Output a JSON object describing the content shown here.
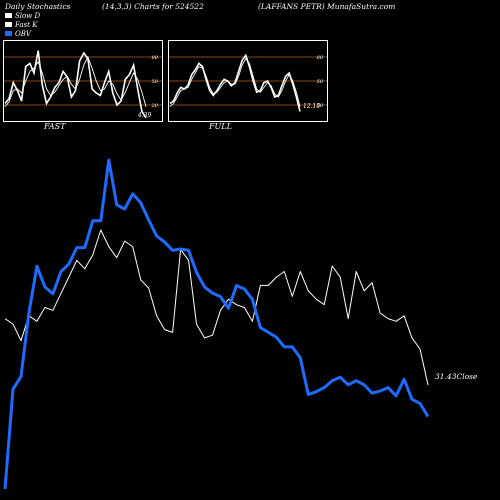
{
  "header": {
    "left": "Daily Stochastics",
    "mid": "(14,3,3) Charts for 524522",
    "right": "(LAFFANS PETR) MunafaSutra.com"
  },
  "legend": [
    {
      "label": "Slow D",
      "color": "#ffffff"
    },
    {
      "label": "Fast K",
      "color": "#ffffff"
    },
    {
      "label": "OBV",
      "color": "#1e6bff"
    }
  ],
  "colors": {
    "obv": "#1e6bff",
    "price": "#ffffff",
    "level": "#8b4513",
    "background": "#000000"
  },
  "chart_data": [
    {
      "type": "line",
      "title": "FAST",
      "ylim": [
        0,
        100
      ],
      "levels": [
        80,
        50,
        20
      ],
      "last_value_label": "4.39",
      "series": [
        {
          "name": "Fast K",
          "values": [
            22,
            28,
            48,
            38,
            25,
            68,
            72,
            60,
            88,
            45,
            22,
            30,
            42,
            48,
            62,
            55,
            30,
            38,
            75,
            85,
            78,
            40,
            35,
            32,
            48,
            62,
            35,
            20,
            25,
            52,
            58,
            70,
            40,
            12,
            4
          ]
        },
        {
          "name": "Slow D",
          "values": [
            18,
            24,
            38,
            40,
            35,
            50,
            62,
            66,
            74,
            60,
            40,
            32,
            36,
            44,
            52,
            56,
            46,
            40,
            52,
            70,
            80,
            66,
            50,
            38,
            40,
            50,
            46,
            34,
            26,
            36,
            48,
            60,
            52,
            36,
            18
          ]
        }
      ]
    },
    {
      "type": "line",
      "title": "FULL",
      "ylim": [
        0,
        100
      ],
      "levels": [
        80,
        50,
        20
      ],
      "last_value_label": "12.15",
      "series": [
        {
          "name": "Fast K",
          "values": [
            22,
            25,
            35,
            42,
            40,
            45,
            58,
            64,
            72,
            68,
            52,
            38,
            32,
            38,
            46,
            52,
            50,
            44,
            48,
            62,
            76,
            82,
            68,
            50,
            36,
            38,
            48,
            50,
            42,
            30,
            32,
            44,
            56,
            60,
            46,
            30,
            12
          ]
        },
        {
          "name": "Slow D",
          "values": [
            18,
            22,
            30,
            38,
            40,
            42,
            52,
            60,
            68,
            66,
            56,
            42,
            34,
            36,
            42,
            48,
            50,
            46,
            46,
            56,
            70,
            78,
            72,
            56,
            40,
            36,
            42,
            48,
            44,
            34,
            30,
            38,
            50,
            58,
            50,
            36,
            18
          ]
        }
      ]
    },
    {
      "type": "line",
      "last_price_label": "31.43",
      "price_label": "Close",
      "series": [
        {
          "name": "Price",
          "values": [
            44,
            42,
            36,
            45,
            43,
            48,
            47,
            53,
            59,
            65,
            62,
            67,
            76,
            70,
            66,
            72,
            70,
            58,
            55,
            45,
            40,
            39,
            69,
            65,
            42,
            37,
            38,
            47,
            51,
            49,
            48,
            43,
            56,
            56,
            59,
            61,
            52,
            61,
            54,
            51,
            49,
            63,
            59,
            44,
            61,
            54,
            57,
            46,
            44,
            43,
            45,
            37,
            33,
            20
          ]
        },
        {
          "name": "OBV",
          "values": [
            155,
            300,
            318,
            410,
            478,
            448,
            438,
            470,
            481,
            505,
            505,
            544,
            544,
            632,
            567,
            561,
            583,
            570,
            545,
            522,
            513,
            501,
            503,
            501,
            469,
            448,
            439,
            434,
            417,
            450,
            445,
            430,
            389,
            382,
            375,
            361,
            361,
            345,
            292,
            296,
            302,
            312,
            317,
            306,
            312,
            306,
            294,
            297,
            302,
            290,
            314,
            285,
            279,
            260
          ]
        }
      ]
    }
  ]
}
